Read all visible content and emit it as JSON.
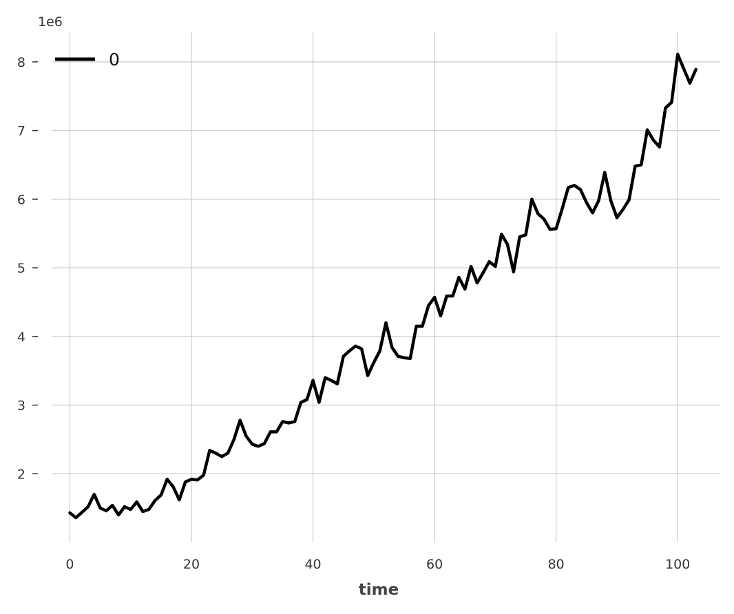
{
  "chart_data": {
    "type": "line",
    "title": "",
    "xlabel": "time",
    "ylabel": "",
    "offset_label": "1e6",
    "xlim": [
      -3,
      107
    ],
    "ylim": [
      1.0,
      8.5
    ],
    "x_ticks": [
      0,
      20,
      40,
      60,
      80,
      100
    ],
    "y_ticks": [
      2,
      3,
      4,
      5,
      6,
      7,
      8
    ],
    "grid": true,
    "legend_position": "top-left",
    "line_color": "#000000",
    "series": [
      {
        "name": "0",
        "x": [
          0,
          1,
          2,
          3,
          4,
          5,
          6,
          7,
          8,
          9,
          10,
          11,
          12,
          13,
          14,
          15,
          16,
          17,
          18,
          19,
          20,
          21,
          22,
          23,
          24,
          25,
          26,
          27,
          28,
          29,
          30,
          31,
          32,
          33,
          34,
          35,
          36,
          37,
          38,
          39,
          40,
          41,
          42,
          43,
          44,
          45,
          46,
          47,
          48,
          49,
          50,
          51,
          52,
          53,
          54,
          55,
          56,
          57,
          58,
          59,
          60,
          61,
          62,
          63,
          64,
          65,
          66,
          67,
          68,
          69,
          70,
          71,
          72,
          73,
          74,
          75,
          76,
          77,
          78,
          79,
          80,
          81,
          82,
          83,
          84,
          85,
          86,
          87,
          88,
          89,
          90,
          91,
          92,
          93,
          94,
          95,
          96,
          97,
          98,
          99,
          100,
          101,
          102,
          103
        ],
        "values": [
          1.43,
          1.36,
          1.44,
          1.52,
          1.7,
          1.5,
          1.46,
          1.54,
          1.4,
          1.52,
          1.48,
          1.59,
          1.45,
          1.48,
          1.61,
          1.69,
          1.92,
          1.81,
          1.62,
          1.88,
          1.92,
          1.91,
          1.98,
          2.34,
          2.3,
          2.25,
          2.3,
          2.5,
          2.78,
          2.55,
          2.43,
          2.4,
          2.44,
          2.61,
          2.61,
          2.76,
          2.74,
          2.76,
          3.04,
          3.08,
          3.36,
          3.04,
          3.4,
          3.36,
          3.31,
          3.71,
          3.79,
          3.86,
          3.82,
          3.43,
          3.62,
          3.79,
          4.2,
          3.84,
          3.71,
          3.69,
          3.68,
          4.15,
          4.15,
          4.45,
          4.57,
          4.3,
          4.59,
          4.59,
          4.86,
          4.69,
          5.02,
          4.78,
          4.93,
          5.09,
          5.02,
          5.49,
          5.34,
          4.94,
          5.45,
          5.48,
          6.0,
          5.79,
          5.71,
          5.56,
          5.57,
          5.86,
          6.17,
          6.2,
          6.14,
          5.95,
          5.8,
          5.98,
          6.39,
          5.98,
          5.73,
          5.85,
          5.99,
          6.48,
          6.5,
          7.01,
          6.86,
          6.76,
          7.33,
          7.41,
          8.11,
          7.9,
          7.69,
          7.89
        ]
      }
    ]
  }
}
